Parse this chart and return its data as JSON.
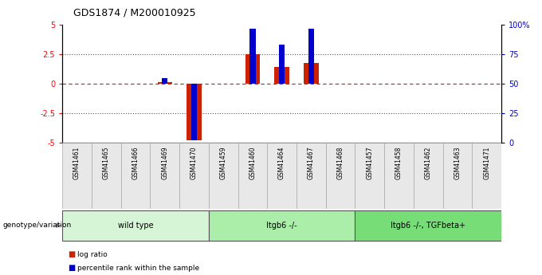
{
  "title": "GDS1874 / M200010925",
  "samples": [
    "GSM41461",
    "GSM41465",
    "GSM41466",
    "GSM41469",
    "GSM41470",
    "GSM41459",
    "GSM41460",
    "GSM41464",
    "GSM41467",
    "GSM41468",
    "GSM41457",
    "GSM41458",
    "GSM41462",
    "GSM41463",
    "GSM41471"
  ],
  "log_ratio": [
    0,
    0,
    0,
    0.15,
    -4.8,
    0,
    2.5,
    1.4,
    1.8,
    0,
    0,
    0,
    0,
    0,
    0
  ],
  "percentile_rank_pct": [
    0,
    0,
    0,
    55,
    2,
    0,
    97,
    83,
    97,
    0,
    0,
    0,
    0,
    0,
    0
  ],
  "groups": [
    {
      "label": "wild type",
      "start": 0,
      "end": 5,
      "color": "#d6f5d6"
    },
    {
      "label": "Itgb6 -/-",
      "start": 5,
      "end": 10,
      "color": "#aaeeaa"
    },
    {
      "label": "Itgb6 -/-, TGFbeta+",
      "start": 10,
      "end": 15,
      "color": "#77dd77"
    }
  ],
  "ylim": [
    -5,
    5
  ],
  "y2lim": [
    0,
    100
  ],
  "yticks": [
    -5,
    -2.5,
    0,
    2.5,
    5
  ],
  "ytick_labels": [
    "-5",
    "-2.5",
    "0",
    "2.5",
    "5"
  ],
  "y2ticks": [
    0,
    25,
    50,
    75,
    100
  ],
  "y2tick_labels": [
    "0",
    "25",
    "50",
    "75",
    "100%"
  ],
  "hline_red_color": "#ff0000",
  "hline_dot_color": "#555555",
  "bar_color_red": "#cc2200",
  "bar_color_blue": "#0000cc",
  "background_color": "#ffffff",
  "legend_red": "log ratio",
  "legend_blue": "percentile rank within the sample",
  "genotype_label": "genotype/variation",
  "sample_box_color": "#e8e8e8",
  "sample_box_edge": "#aaaaaa"
}
